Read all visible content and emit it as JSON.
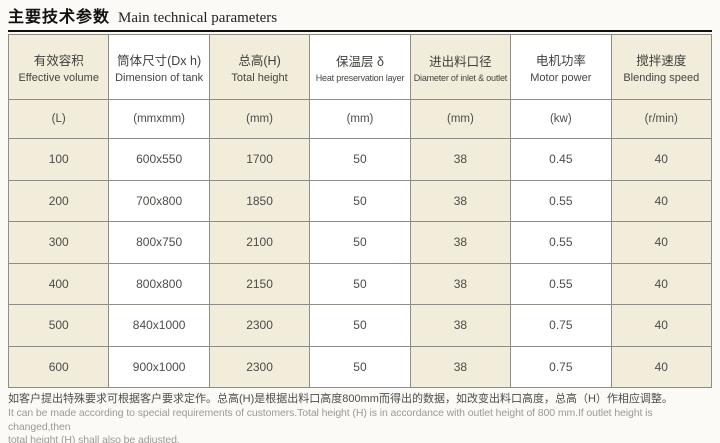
{
  "title": {
    "zh": "主要技术参数",
    "en": "Main technical parameters"
  },
  "table": {
    "columns": [
      {
        "zh": "有效容积",
        "en": "Effective volume",
        "unit": "(L)"
      },
      {
        "zh": "筒体尺寸(Dx h)",
        "en": "Dimension of tank",
        "unit": "(mmxmm)"
      },
      {
        "zh": "总高(H)",
        "en": "Total height",
        "unit": "(mm)"
      },
      {
        "zh": "保温层 δ",
        "en": "Heat preservation layer",
        "unit": "(mm)"
      },
      {
        "zh": "进出料口径",
        "en": "Diameter of inlet & outlet",
        "unit": "(mm)"
      },
      {
        "zh": "电机功率",
        "en": "Motor power",
        "unit": "(kw)"
      },
      {
        "zh": "搅拌速度",
        "en": "Blending speed",
        "unit": "(r/min)"
      }
    ],
    "rows": [
      [
        "100",
        "600x550",
        "1700",
        "50",
        "38",
        "0.45",
        "40"
      ],
      [
        "200",
        "700x800",
        "1850",
        "50",
        "38",
        "0.55",
        "40"
      ],
      [
        "300",
        "800x750",
        "2100",
        "50",
        "38",
        "0.55",
        "40"
      ],
      [
        "400",
        "800x800",
        "2150",
        "50",
        "38",
        "0.55",
        "40"
      ],
      [
        "500",
        "840x1000",
        "2300",
        "50",
        "38",
        "0.75",
        "40"
      ],
      [
        "600",
        "900x1000",
        "2300",
        "50",
        "38",
        "0.75",
        "40"
      ]
    ]
  },
  "footnote": {
    "zh": "如客户提出特殊要求可根据客户要求定作。总高(H)是根据出料口高度800mm而得出的数据，如改变出料口高度，总高（H）作相应调整。",
    "en_line1": "It can be made according to special requirements of customers.Total height (H) is in accordance with outlet height of 800 mm.If outlet height is changed,then",
    "en_line2": "total height (H) shall also be adjusted."
  },
  "colors": {
    "stripe": "#f2ecda",
    "border": "#8d8d86",
    "title_rule": "#111111"
  }
}
